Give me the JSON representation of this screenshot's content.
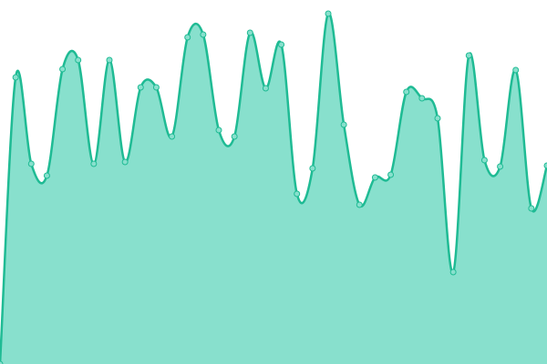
{
  "chart_data": {
    "type": "area",
    "categories": [
      null,
      null,
      null,
      null,
      null,
      null,
      null,
      null,
      null,
      null,
      null,
      null,
      null,
      null,
      null,
      null,
      null,
      null,
      null,
      null,
      null,
      null,
      null,
      null,
      null,
      null,
      null,
      null,
      null,
      null,
      null,
      null,
      null,
      null,
      null,
      null
    ],
    "values": [
      0,
      315,
      220,
      207,
      324,
      334,
      220,
      334,
      222,
      304,
      304,
      250,
      359,
      362,
      257,
      250,
      364,
      303,
      351,
      187,
      215,
      385,
      263,
      175,
      205,
      208,
      299,
      292,
      270,
      101,
      339,
      224,
      217,
      323,
      171,
      218
    ],
    "ylim": [
      0,
      400
    ],
    "color": "#1fbb94",
    "fill_color": "#88e0cd",
    "markers": true
  }
}
